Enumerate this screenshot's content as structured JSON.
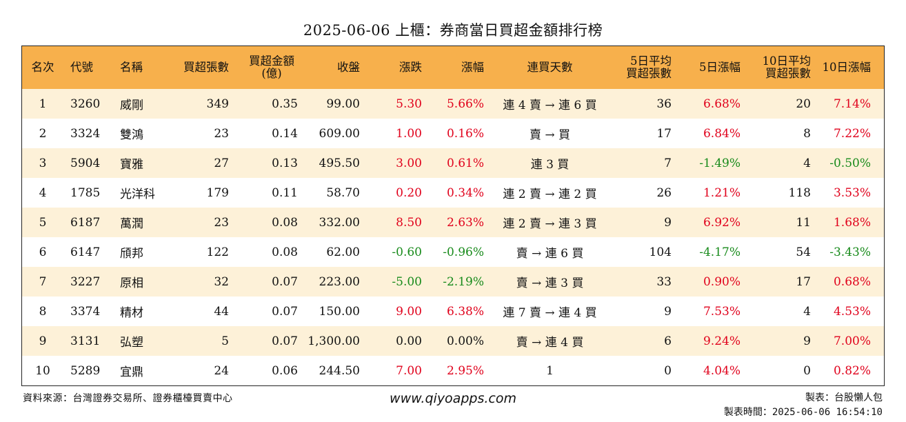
{
  "title": "2025-06-06 上櫃：券商當日買超金額排行榜",
  "headers": {
    "rank": "名次",
    "code": "代號",
    "name": "名稱",
    "lots": "買超張數",
    "amount_line1": "買超金額",
    "amount_line2": "(億)",
    "close": "收盤",
    "change": "漲跌",
    "change_pct": "漲幅",
    "days": "連買天數",
    "avg5_line1": "5日平均",
    "avg5_line2": "買超張數",
    "pct5": "5日漲幅",
    "avg10_line1": "10日平均",
    "avg10_line2": "買超張數",
    "pct10": "10日漲幅"
  },
  "rows": [
    {
      "rank": "1",
      "code": "3260",
      "name": "威剛",
      "lots": "349",
      "amount": "0.35",
      "close": "99.00",
      "change": "5.30",
      "change_pct": "5.66%",
      "days": "連 4 賣 → 連 6 買",
      "avg5": "36",
      "pct5": "6.68%",
      "avg10": "20",
      "pct10": "7.14%",
      "c_change": "red",
      "c_pct": "red",
      "c_pct5": "red",
      "c_pct10": "red"
    },
    {
      "rank": "2",
      "code": "3324",
      "name": "雙鴻",
      "lots": "23",
      "amount": "0.14",
      "close": "609.00",
      "change": "1.00",
      "change_pct": "0.16%",
      "days": "賣 → 買",
      "avg5": "17",
      "pct5": "6.84%",
      "avg10": "8",
      "pct10": "7.22%",
      "c_change": "red",
      "c_pct": "red",
      "c_pct5": "red",
      "c_pct10": "red"
    },
    {
      "rank": "3",
      "code": "5904",
      "name": "寶雅",
      "lots": "27",
      "amount": "0.13",
      "close": "495.50",
      "change": "3.00",
      "change_pct": "0.61%",
      "days": "連 3 買",
      "avg5": "7",
      "pct5": "-1.49%",
      "avg10": "4",
      "pct10": "-0.50%",
      "c_change": "red",
      "c_pct": "red",
      "c_pct5": "green",
      "c_pct10": "green"
    },
    {
      "rank": "4",
      "code": "1785",
      "name": "光洋科",
      "lots": "179",
      "amount": "0.11",
      "close": "58.70",
      "change": "0.20",
      "change_pct": "0.34%",
      "days": "連 2 賣 → 連 2 買",
      "avg5": "26",
      "pct5": "1.21%",
      "avg10": "118",
      "pct10": "3.53%",
      "c_change": "red",
      "c_pct": "red",
      "c_pct5": "red",
      "c_pct10": "red"
    },
    {
      "rank": "5",
      "code": "6187",
      "name": "萬潤",
      "lots": "23",
      "amount": "0.08",
      "close": "332.00",
      "change": "8.50",
      "change_pct": "2.63%",
      "days": "連 2 賣 → 連 3 買",
      "avg5": "9",
      "pct5": "6.92%",
      "avg10": "11",
      "pct10": "1.68%",
      "c_change": "red",
      "c_pct": "red",
      "c_pct5": "red",
      "c_pct10": "red"
    },
    {
      "rank": "6",
      "code": "6147",
      "name": "頎邦",
      "lots": "122",
      "amount": "0.08",
      "close": "62.00",
      "change": "-0.60",
      "change_pct": "-0.96%",
      "days": "賣 → 連 6 買",
      "avg5": "104",
      "pct5": "-4.17%",
      "avg10": "54",
      "pct10": "-3.43%",
      "c_change": "green",
      "c_pct": "green",
      "c_pct5": "green",
      "c_pct10": "green"
    },
    {
      "rank": "7",
      "code": "3227",
      "name": "原相",
      "lots": "32",
      "amount": "0.07",
      "close": "223.00",
      "change": "-5.00",
      "change_pct": "-2.19%",
      "days": "賣 → 連 3 買",
      "avg5": "33",
      "pct5": "0.90%",
      "avg10": "17",
      "pct10": "0.68%",
      "c_change": "green",
      "c_pct": "green",
      "c_pct5": "red",
      "c_pct10": "red"
    },
    {
      "rank": "8",
      "code": "3374",
      "name": "精材",
      "lots": "44",
      "amount": "0.07",
      "close": "150.00",
      "change": "9.00",
      "change_pct": "6.38%",
      "days": "連 7 賣 → 連 4 買",
      "avg5": "9",
      "pct5": "7.53%",
      "avg10": "4",
      "pct10": "4.53%",
      "c_change": "red",
      "c_pct": "red",
      "c_pct5": "red",
      "c_pct10": "red"
    },
    {
      "rank": "9",
      "code": "3131",
      "name": "弘塑",
      "lots": "5",
      "amount": "0.07",
      "close": "1,300.00",
      "change": "0.00",
      "change_pct": "0.00%",
      "days": "賣 → 連 4 買",
      "avg5": "6",
      "pct5": "9.24%",
      "avg10": "9",
      "pct10": "7.00%",
      "c_change": "plain",
      "c_pct": "plain",
      "c_pct5": "red",
      "c_pct10": "red"
    },
    {
      "rank": "10",
      "code": "5289",
      "name": "宜鼎",
      "lots": "24",
      "amount": "0.06",
      "close": "244.50",
      "change": "7.00",
      "change_pct": "2.95%",
      "days": "1",
      "avg5": "0",
      "pct5": "4.04%",
      "avg10": "0",
      "pct10": "0.82%",
      "c_change": "red",
      "c_pct": "red",
      "c_pct5": "red",
      "c_pct10": "red"
    }
  ],
  "footer": {
    "source": "資料來源：台灣證券交易所、證券櫃檯買賣中心",
    "website": "www.qiyoapps.com",
    "maker": "製表：台股懶人包",
    "time": "製表時間：2025-06-06 16:54:10"
  },
  "colors": {
    "header_bg": "#f7b04c",
    "alt_row_bg": "#fdf1d8",
    "up": "#e0001b",
    "down": "#178a1a"
  }
}
